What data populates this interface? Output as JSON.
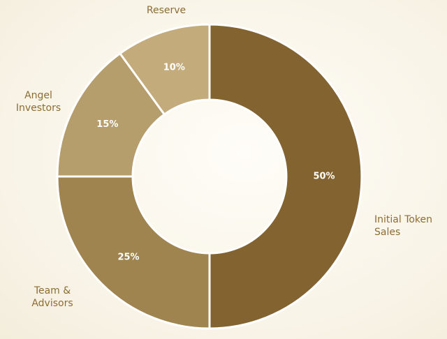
{
  "chart_data": {
    "type": "donut",
    "categories": [
      "Initial Token Sales",
      "Team & Advisors",
      "Angel Investors",
      "Reserve"
    ],
    "values": [
      50,
      25,
      15,
      10
    ],
    "value_labels": [
      "50%",
      "25%",
      "15%",
      "10%"
    ],
    "colors": [
      "#836430",
      "#a0844f",
      "#b59d6c",
      "#c4ab7b"
    ]
  }
}
